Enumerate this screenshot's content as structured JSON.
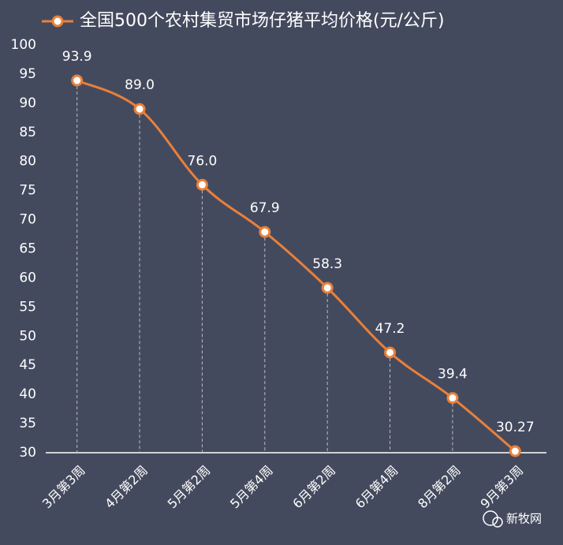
{
  "chart_data": {
    "type": "line",
    "categories": [
      "3月第3周",
      "4月第2周",
      "5月第2周",
      "5月第4周",
      "6月第2周",
      "6月第4周",
      "8月第2周",
      "9月第3周"
    ],
    "series": [
      {
        "name": "全国500个农村集贸市场仔猪平均价格(元/公斤)",
        "color": "#e9803a",
        "values": [
          93.9,
          89,
          76,
          67.9,
          58.3,
          47.2,
          39.4,
          30.27
        ],
        "value_labels": [
          "93.9",
          "89.0",
          "76.0",
          "67.9",
          "58.3",
          "47.2",
          "39.4",
          "30.27"
        ]
      }
    ],
    "ylim": [
      30,
      100
    ],
    "yticks": [
      30,
      35,
      40,
      45,
      50,
      55,
      60,
      65,
      70,
      75,
      80,
      85,
      90,
      95,
      100
    ],
    "drop_lines": true
  },
  "watermark": "新牧网"
}
